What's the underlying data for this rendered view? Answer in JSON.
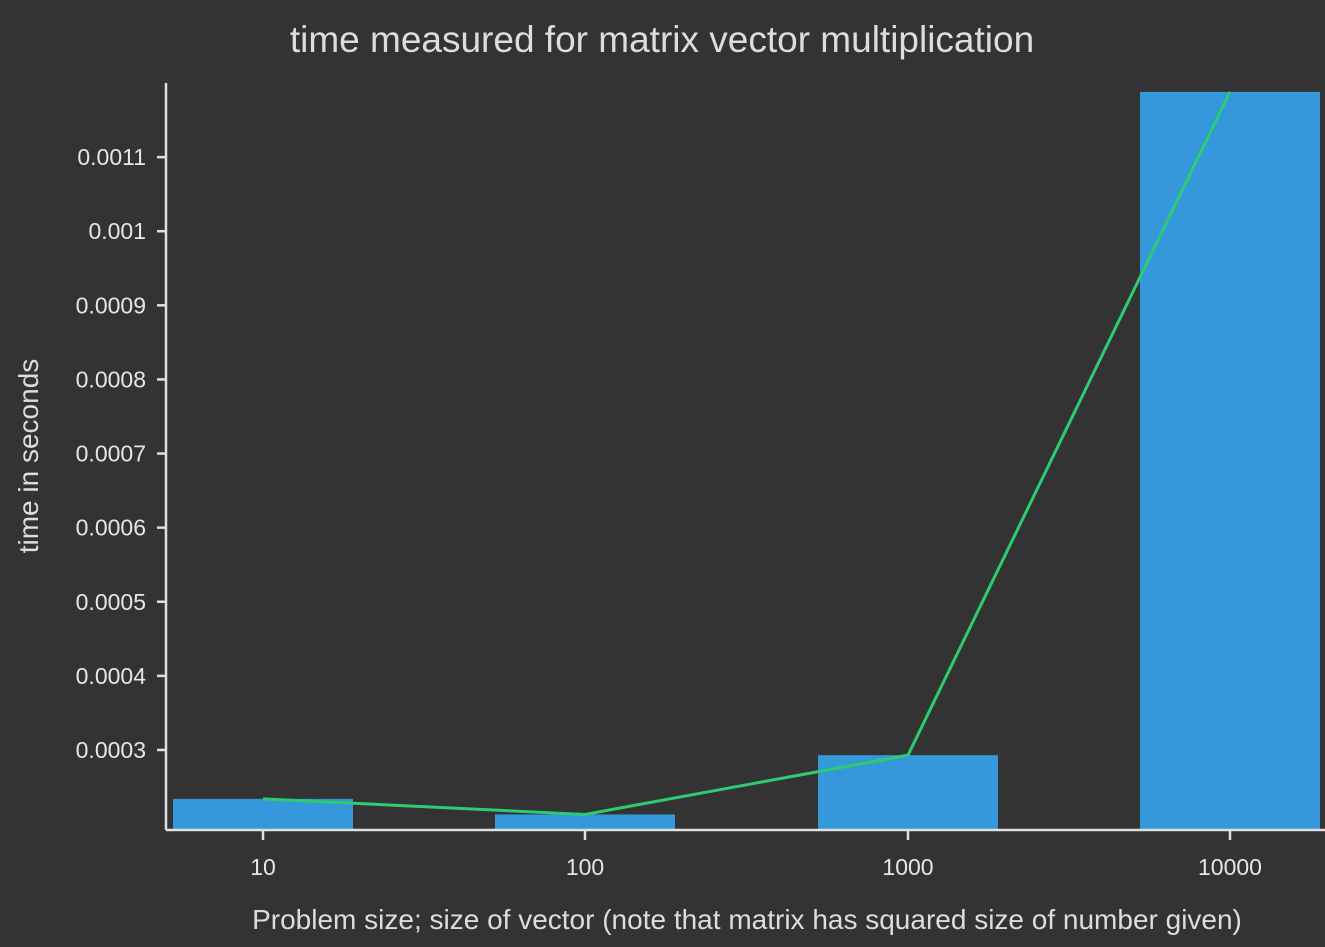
{
  "chart_data": {
    "type": "bar",
    "title": "time measured for matrix vector multiplication",
    "xlabel": "Problem size; size of vector (note that matrix has squared size of number given)",
    "ylabel": "time in seconds",
    "categories": [
      "10",
      "100",
      "1000",
      "10000"
    ],
    "series": [
      {
        "type": "bar",
        "values": [
          0.000234,
          0.000213,
          0.000293,
          0.001188
        ],
        "color": "#3498db"
      },
      {
        "type": "line",
        "values": [
          0.000234,
          0.000213,
          0.000293,
          0.001188
        ],
        "color": "#2ecc71"
      }
    ],
    "yticks": [
      0.0003,
      0.0004,
      0.0005,
      0.0006,
      0.0007,
      0.0008,
      0.0009,
      0.001,
      0.0011
    ],
    "ytick_labels": [
      "0.0003",
      "0.0004",
      "0.0005",
      "0.0006",
      "0.0007",
      "0.0008",
      "0.0009",
      "0.001",
      "0.0011"
    ],
    "ylim": [
      0.000192,
      0.0012
    ],
    "grid": false,
    "background": "#333333"
  }
}
